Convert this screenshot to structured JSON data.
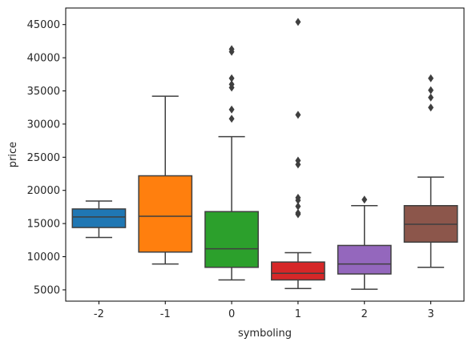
{
  "chart_data": {
    "type": "box",
    "xlabel": "symboling",
    "ylabel": "price",
    "ylim": [
      3300,
      47500
    ],
    "yticks": [
      5000,
      10000,
      15000,
      20000,
      25000,
      30000,
      35000,
      40000,
      45000
    ],
    "grid": false,
    "categories": [
      "-2",
      "-1",
      "0",
      "1",
      "2",
      "3"
    ],
    "boxes": [
      {
        "category": "-2",
        "color": "#1f77b4",
        "whisker_low": 12900,
        "q1": 14400,
        "median": 16000,
        "q3": 17200,
        "whisker_high": 18400,
        "outliers": []
      },
      {
        "category": "-1",
        "color": "#ff7f0e",
        "whisker_low": 8900,
        "q1": 10700,
        "median": 16100,
        "q3": 22200,
        "whisker_high": 34200,
        "outliers": []
      },
      {
        "category": "0",
        "color": "#2ca02c",
        "whisker_low": 6500,
        "q1": 8400,
        "median": 11200,
        "q3": 16800,
        "whisker_high": 28100,
        "outliers": [
          30800,
          32200,
          35500,
          36000,
          36900,
          40900,
          41300
        ]
      },
      {
        "category": "1",
        "color": "#d62728",
        "whisker_low": 5200,
        "q1": 6500,
        "median": 7500,
        "q3": 9200,
        "whisker_high": 10600,
        "outliers": [
          16400,
          16600,
          17600,
          18500,
          18900,
          23900,
          24500,
          31400,
          45400
        ]
      },
      {
        "category": "2",
        "color": "#9467bd",
        "whisker_low": 5100,
        "q1": 7400,
        "median": 8900,
        "q3": 11700,
        "whisker_high": 17700,
        "outliers": [
          18600
        ]
      },
      {
        "category": "3",
        "color": "#8c564b",
        "whisker_low": 8400,
        "q1": 12200,
        "median": 14900,
        "q3": 17700,
        "whisker_high": 22000,
        "outliers": [
          32500,
          34000,
          35100,
          36900
        ]
      }
    ]
  }
}
